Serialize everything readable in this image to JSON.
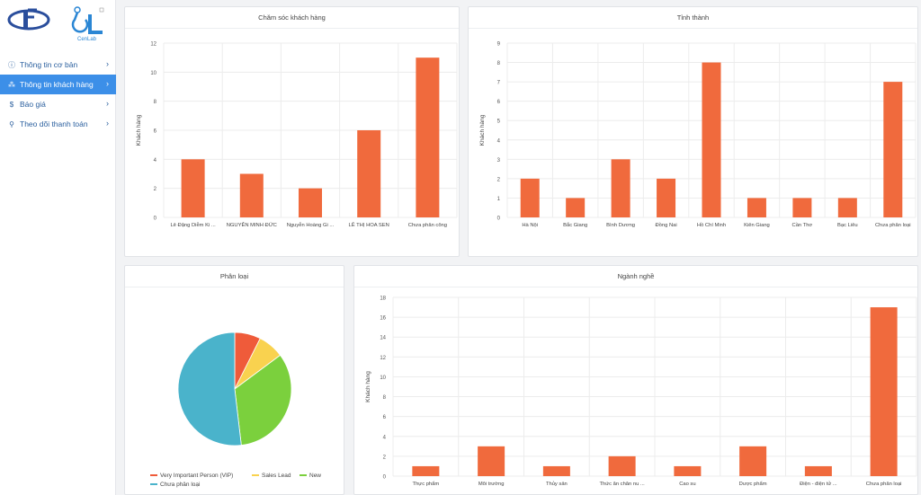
{
  "sidebar": {
    "logo_text": "CenLab",
    "items": [
      {
        "label": "Thông tin cơ bản",
        "icon": "info-circle-icon",
        "glyph": "ⓘ",
        "active": false
      },
      {
        "label": "Thông tin khách hàng",
        "icon": "users-icon",
        "glyph": "⁂",
        "active": true
      },
      {
        "label": "Báo giá",
        "icon": "dollar-icon",
        "glyph": "$",
        "active": false
      },
      {
        "label": "Theo dõi thanh toán",
        "icon": "search-icon",
        "glyph": "⚲",
        "active": false
      }
    ]
  },
  "colors": {
    "bar": "#f06a3d",
    "accent": "#3c8fe8",
    "grid": "#ececec"
  },
  "chart_data": [
    {
      "id": "cskh",
      "type": "bar",
      "title": "Chăm sóc khách hàng",
      "ylabel": "Khách hàng",
      "categories": [
        "Lê Đặng Diễm Ki ...",
        "NGUYỄN MINH ĐỨC",
        "Nguyễn Hoàng Gi ...",
        "LÊ THỊ HOA SEN",
        "Chưa phân công"
      ],
      "values": [
        4,
        3,
        2,
        6,
        11
      ],
      "ylim": [
        0,
        12
      ],
      "yticks": [
        0,
        2,
        4,
        6,
        8,
        10,
        12
      ],
      "grid": true
    },
    {
      "id": "tinhthanh",
      "type": "bar",
      "title": "Tỉnh thành",
      "ylabel": "Khách hàng",
      "categories": [
        "Hà Nội",
        "Bắc Giang",
        "Bình Dương",
        "Đồng Nai",
        "Hồ Chí Minh",
        "Kiên Giang",
        "Cần Thơ",
        "Bạc Liêu",
        "Chưa phân loại"
      ],
      "values": [
        2,
        1,
        3,
        2,
        8,
        1,
        1,
        1,
        7
      ],
      "ylim": [
        0,
        9
      ],
      "yticks": [
        0,
        1,
        2,
        3,
        4,
        5,
        6,
        7,
        8,
        9
      ],
      "grid": true
    },
    {
      "id": "phanloai",
      "type": "pie",
      "title": "Phân loại",
      "slices": [
        {
          "label": "Very Important Person (VIP)",
          "value": 2,
          "color": "#ef5b3a"
        },
        {
          "label": "Sales Lead",
          "value": 2,
          "color": "#f9d24f"
        },
        {
          "label": "New",
          "value": 9,
          "color": "#7bd03d"
        },
        {
          "label": "Chưa phân loại",
          "value": 14,
          "color": "#4ab3cb"
        }
      ],
      "legend": "bottom"
    },
    {
      "id": "nganhnghe",
      "type": "bar",
      "title": "Ngành nghề",
      "ylabel": "Khách hàng",
      "categories": [
        "Thực phẩm",
        "Môi trường",
        "Thủy sản",
        "Thức ăn chăn nu ...",
        "Cao su",
        "Dược phẩm",
        "Điện - điện tử ...",
        "Chưa phân loại"
      ],
      "values": [
        1,
        3,
        1,
        2,
        1,
        3,
        1,
        17
      ],
      "ylim": [
        0,
        18
      ],
      "yticks": [
        0,
        2,
        4,
        6,
        8,
        10,
        12,
        14,
        16,
        18
      ],
      "grid": true
    }
  ]
}
